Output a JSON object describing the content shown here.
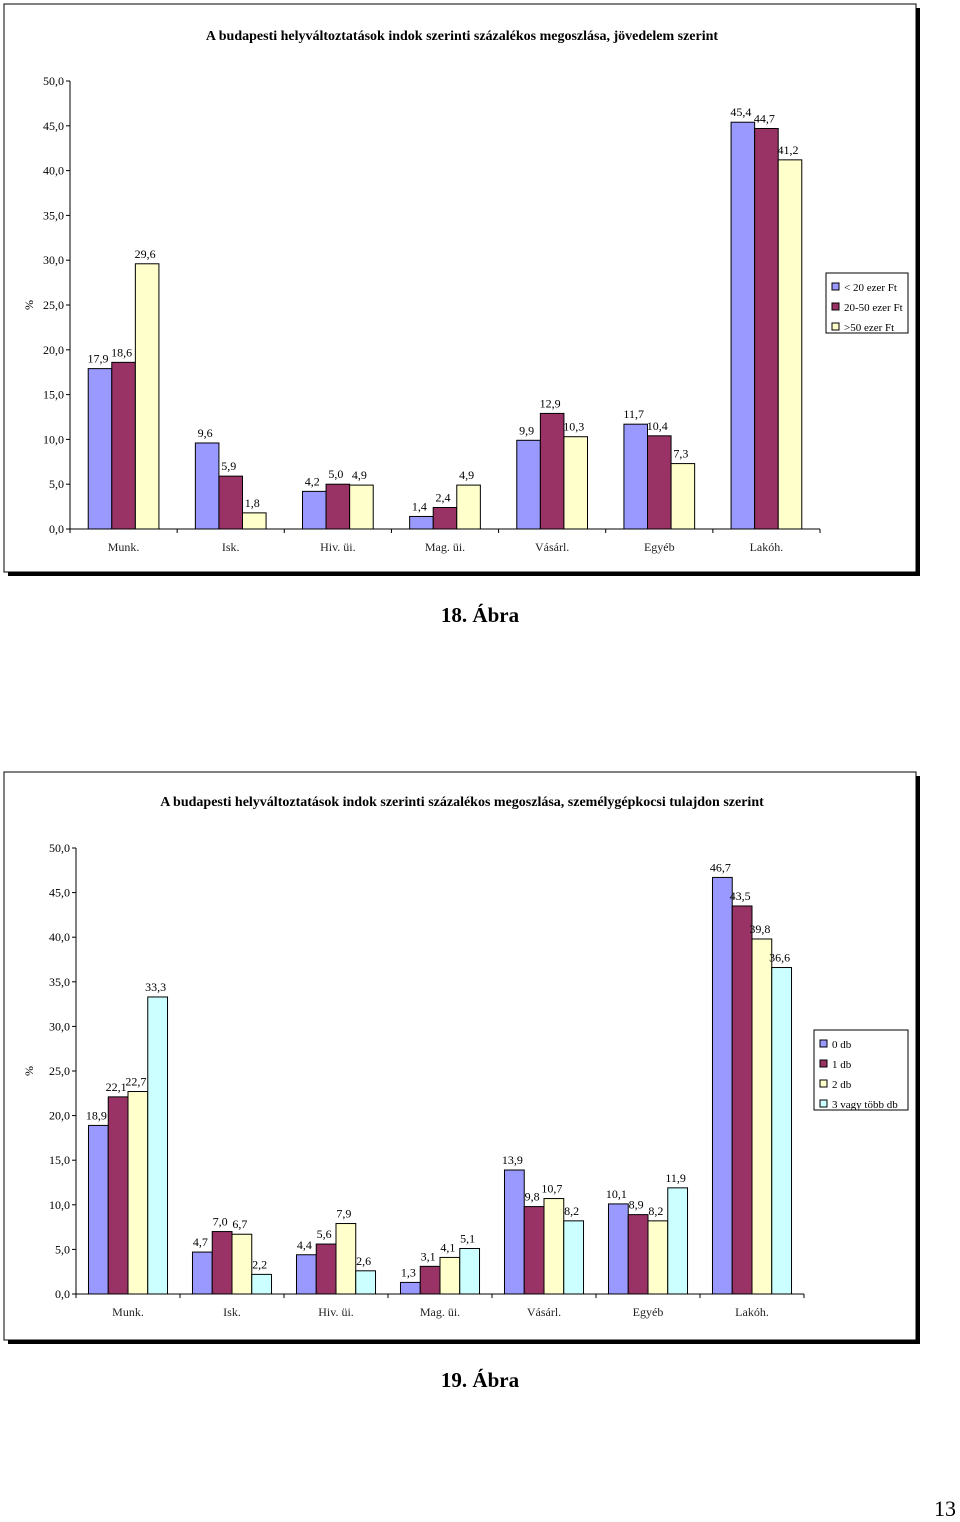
{
  "page_number": "13",
  "captions": [
    "18. Ábra",
    "19. Ábra"
  ],
  "chart_data": [
    {
      "type": "bar",
      "title": "A budapesti helyváltoztatások indok szerinti százalékos megoszlása, jövedelem szerint",
      "ylabel": "%",
      "xlabel": "",
      "ylim": [
        0,
        50
      ],
      "y_ticks": [
        "0,0",
        "5,0",
        "10,0",
        "15,0",
        "20,0",
        "25,0",
        "30,0",
        "35,0",
        "40,0",
        "45,0",
        "50,0"
      ],
      "grid": false,
      "legend_position": "right",
      "categories": [
        "Munk.",
        "Isk.",
        "Hiv. üi.",
        "Mag. üi.",
        "Vásárl.",
        "Egyéb",
        "Lakóh."
      ],
      "series": [
        {
          "name": "< 20  ezer Ft",
          "color": "#9999ff",
          "values": [
            17.9,
            9.6,
            4.2,
            1.4,
            9.9,
            11.7,
            45.4
          ],
          "labels": [
            "17,9",
            "9,6",
            "4,2",
            "1,4",
            "9,9",
            "11,7",
            "45,4"
          ]
        },
        {
          "name": "20-50 ezer Ft",
          "color": "#993366",
          "values": [
            18.6,
            5.9,
            5.0,
            2.4,
            12.9,
            10.4,
            44.7
          ],
          "labels": [
            "18,6",
            "5,9",
            "5,0",
            "2,4",
            "12,9",
            "10,4",
            "44,7"
          ]
        },
        {
          "name": ">50 ezer Ft",
          "color": "#ffffcc",
          "values": [
            29.6,
            1.8,
            4.9,
            4.9,
            10.3,
            7.3,
            41.2
          ],
          "labels": [
            "29,6",
            "1,8",
            "4,9",
            "4,9",
            "10,3",
            "7,3",
            "41,2"
          ]
        }
      ]
    },
    {
      "type": "bar",
      "title": "A budapesti helyváltoztatások indok szerinti százalékos megoszlása, személygépkocsi tulajdon szerint",
      "ylabel": "%",
      "xlabel": "",
      "ylim": [
        0,
        50
      ],
      "y_ticks": [
        "0,0",
        "5,0",
        "10,0",
        "15,0",
        "20,0",
        "25,0",
        "30,0",
        "35,0",
        "40,0",
        "45,0",
        "50,0"
      ],
      "grid": false,
      "legend_position": "right",
      "categories": [
        "Munk.",
        "Isk.",
        "Hiv. üi.",
        "Mag. üi.",
        "Vásárl.",
        "Egyéb",
        "Lakóh."
      ],
      "series": [
        {
          "name": "0 db",
          "color": "#9999ff",
          "values": [
            18.9,
            4.7,
            4.4,
            1.3,
            13.9,
            10.1,
            46.7
          ],
          "labels": [
            "18,9",
            "4,7",
            "4,4",
            "1,3",
            "13,9",
            "10,1",
            "46,7"
          ]
        },
        {
          "name": "1 db",
          "color": "#993366",
          "values": [
            22.1,
            7.0,
            5.6,
            3.1,
            9.8,
            8.9,
            43.5
          ],
          "labels": [
            "22,1",
            "7,0",
            "5,6",
            "3,1",
            "9,8",
            "8,9",
            "43,5"
          ]
        },
        {
          "name": "2 db",
          "color": "#ffffcc",
          "values": [
            22.7,
            6.7,
            7.9,
            4.1,
            10.7,
            8.2,
            39.8
          ],
          "labels": [
            "22,7",
            "6,7",
            "7,9",
            "4,1",
            "10,7",
            "8,2",
            "39,8"
          ]
        },
        {
          "name": "3 vagy több db",
          "color": "#ccffff",
          "values": [
            33.3,
            2.2,
            2.6,
            5.1,
            8.2,
            11.9,
            36.6
          ],
          "labels": [
            "33,3",
            "2,2",
            "2,6",
            "5,1",
            "8,2",
            "11,9",
            "36,6"
          ]
        }
      ]
    }
  ]
}
